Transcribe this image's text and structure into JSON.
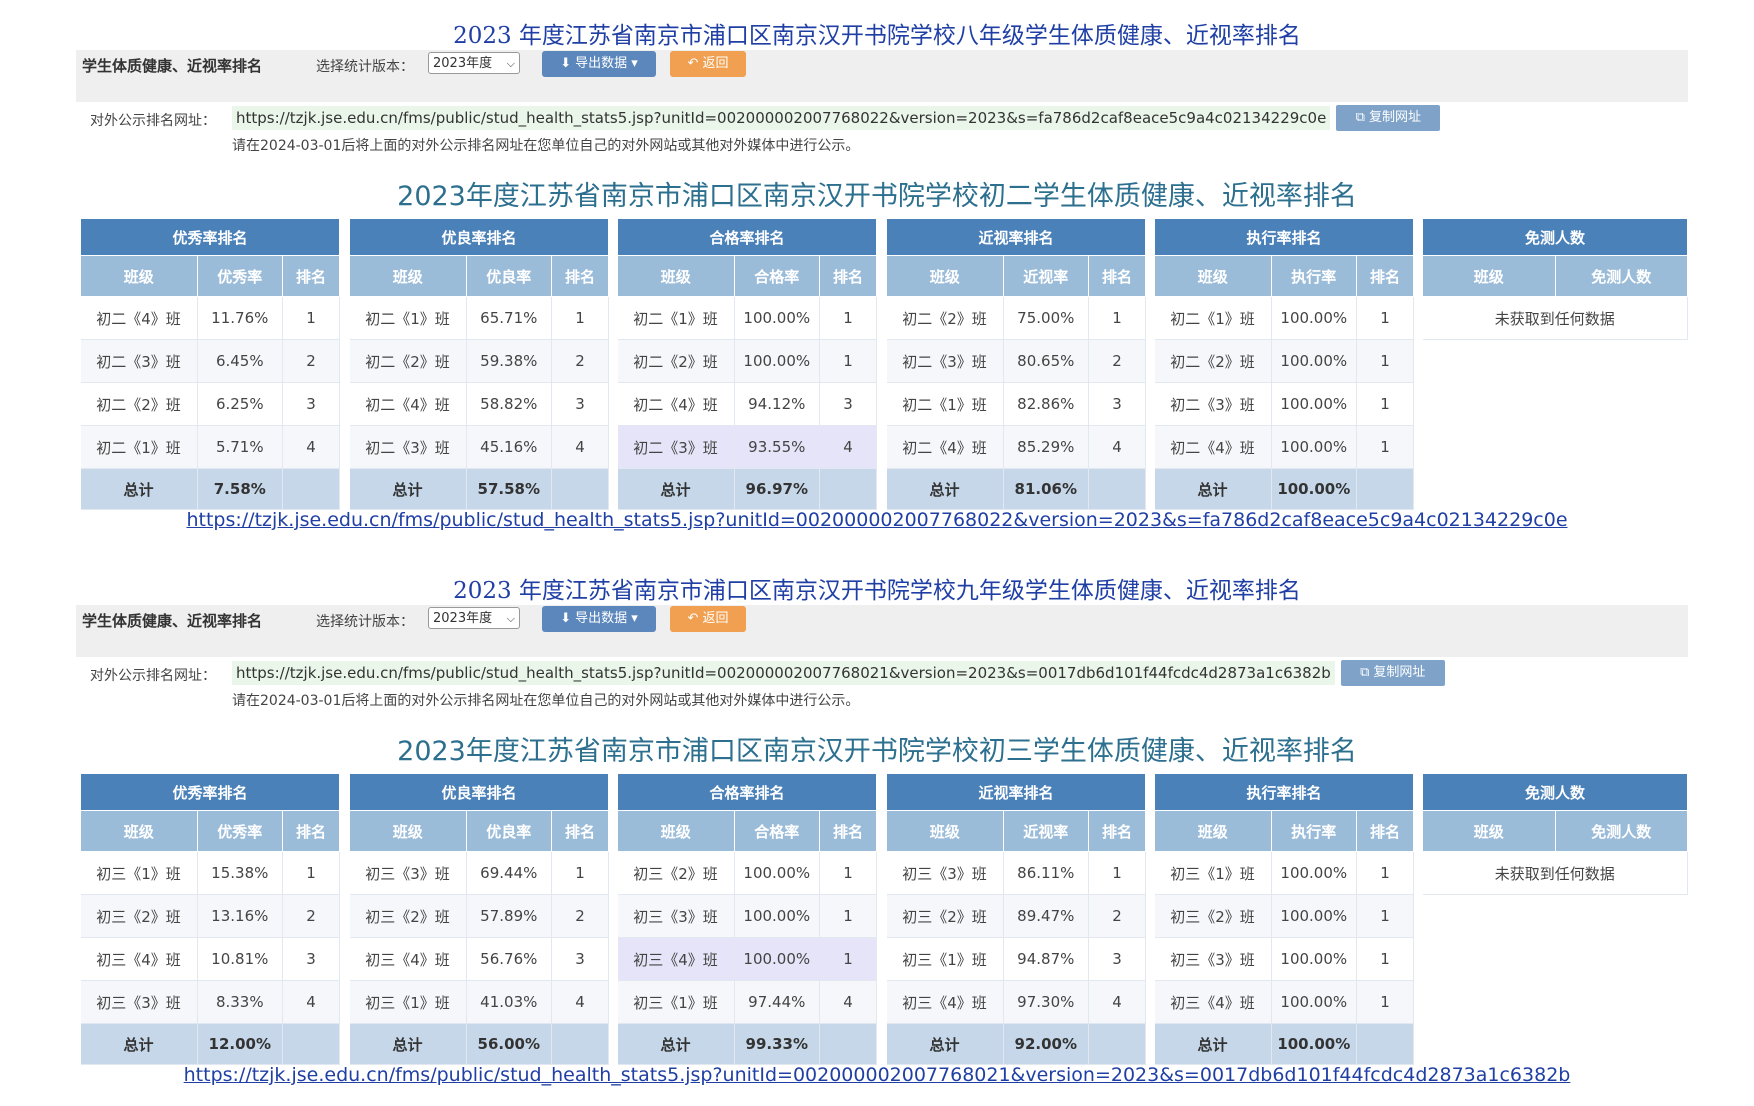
{
  "sections": [
    {
      "doc_title": "2023 年度江苏省南京市浦口区南京汉开书院学校八年级学生体质健康、近视率排名",
      "toolbar": {
        "label": "学生体质健康、近视率排名",
        "version_label": "选择统计版本：",
        "version_value": "2023年度",
        "export_label": "导出数据",
        "back_label": "返回"
      },
      "url_label": "对外公示排名网址：",
      "url": "https://tzjk.jse.edu.cn/fms/public/stud_health_stats5.jsp?unitId=00200000200776802 2&version=2023&s=fa786d2caf8eace5c9a4c02134229c0e",
      "copy_label": "复制网址",
      "notice": "请在2024-03-01后将上面的对外公示排名网址在您单位自己的对外网站或其他对外媒体中进行公示。",
      "sub_title": "2023年度江苏省南京市浦口区南京汉开书院学校初二学生体质健康、近视率排名",
      "footer_link": "https://tzjk.jse.edu.cn/fms/public/stud_health_stats5.jsp?unitId=002000002007768022&version=2023&s=fa786d2caf8eace5c9a4c02134229c0e",
      "panels": [
        {
          "title": "优秀率排名",
          "cols": [
            "班级",
            "优秀率",
            "排名"
          ],
          "rows": [
            [
              "初二《4》班",
              "11.76%",
              "1"
            ],
            [
              "初二《3》班",
              "6.45%",
              "2"
            ],
            [
              "初二《2》班",
              "6.25%",
              "3"
            ],
            [
              "初二《1》班",
              "5.71%",
              "4"
            ]
          ],
          "total": [
            "总计",
            "7.58%",
            ""
          ],
          "hl": -1
        },
        {
          "title": "优良率排名",
          "cols": [
            "班级",
            "优良率",
            "排名"
          ],
          "rows": [
            [
              "初二《1》班",
              "65.71%",
              "1"
            ],
            [
              "初二《2》班",
              "59.38%",
              "2"
            ],
            [
              "初二《4》班",
              "58.82%",
              "3"
            ],
            [
              "初二《3》班",
              "45.16%",
              "4"
            ]
          ],
          "total": [
            "总计",
            "57.58%",
            ""
          ],
          "hl": -1
        },
        {
          "title": "合格率排名",
          "cols": [
            "班级",
            "合格率",
            "排名"
          ],
          "rows": [
            [
              "初二《1》班",
              "100.00%",
              "1"
            ],
            [
              "初二《2》班",
              "100.00%",
              "1"
            ],
            [
              "初二《4》班",
              "94.12%",
              "3"
            ],
            [
              "初二《3》班",
              "93.55%",
              "4"
            ]
          ],
          "total": [
            "总计",
            "96.97%",
            ""
          ],
          "hl": 3
        },
        {
          "title": "近视率排名",
          "cols": [
            "班级",
            "近视率",
            "排名"
          ],
          "rows": [
            [
              "初二《2》班",
              "75.00%",
              "1"
            ],
            [
              "初二《3》班",
              "80.65%",
              "2"
            ],
            [
              "初二《1》班",
              "82.86%",
              "3"
            ],
            [
              "初二《4》班",
              "85.29%",
              "4"
            ]
          ],
          "total": [
            "总计",
            "81.06%",
            ""
          ],
          "hl": -1
        },
        {
          "title": "执行率排名",
          "cols": [
            "班级",
            "执行率",
            "排名"
          ],
          "rows": [
            [
              "初二《1》班",
              "100.00%",
              "1"
            ],
            [
              "初二《2》班",
              "100.00%",
              "1"
            ],
            [
              "初二《3》班",
              "100.00%",
              "1"
            ],
            [
              "初二《4》班",
              "100.00%",
              "1"
            ]
          ],
          "total": [
            "总计",
            "100.00%",
            ""
          ],
          "hl": -1
        }
      ],
      "exempt": {
        "title": "免测人数",
        "cols": [
          "班级",
          "免测人数"
        ],
        "empty": "未获取到任何数据"
      }
    },
    {
      "doc_title": "2023 年度江苏省南京市浦口区南京汉开书院学校九年级学生体质健康、近视率排名",
      "toolbar": {
        "label": "学生体质健康、近视率排名",
        "version_label": "选择统计版本：",
        "version_value": "2023年度",
        "export_label": "导出数据",
        "back_label": "返回"
      },
      "url_label": "对外公示排名网址：",
      "url": "https://tzjk.jse.edu.cn/fms/public/stud_health_stats5.jsp?unitId=002000002007768021&version=2023&s=0017db6d101f44fcdc4d2873a1c6382b",
      "copy_label": "复制网址",
      "notice": "请在2024-03-01后将上面的对外公示排名网址在您单位自己的对外网站或其他对外媒体中进行公示。",
      "sub_title": "2023年度江苏省南京市浦口区南京汉开书院学校初三学生体质健康、近视率排名",
      "footer_link": "https://tzjk.jse.edu.cn/fms/public/stud_health_stats5.jsp?unitId=002000002007768021&version=2023&s=0017db6d101f44fcdc4d2873a1c6382b",
      "panels": [
        {
          "title": "优秀率排名",
          "cols": [
            "班级",
            "优秀率",
            "排名"
          ],
          "rows": [
            [
              "初三《1》班",
              "15.38%",
              "1"
            ],
            [
              "初三《2》班",
              "13.16%",
              "2"
            ],
            [
              "初三《4》班",
              "10.81%",
              "3"
            ],
            [
              "初三《3》班",
              "8.33%",
              "4"
            ]
          ],
          "total": [
            "总计",
            "12.00%",
            ""
          ],
          "hl": -1
        },
        {
          "title": "优良率排名",
          "cols": [
            "班级",
            "优良率",
            "排名"
          ],
          "rows": [
            [
              "初三《3》班",
              "69.44%",
              "1"
            ],
            [
              "初三《2》班",
              "57.89%",
              "2"
            ],
            [
              "初三《4》班",
              "56.76%",
              "3"
            ],
            [
              "初三《1》班",
              "41.03%",
              "4"
            ]
          ],
          "total": [
            "总计",
            "56.00%",
            ""
          ],
          "hl": -1
        },
        {
          "title": "合格率排名",
          "cols": [
            "班级",
            "合格率",
            "排名"
          ],
          "rows": [
            [
              "初三《2》班",
              "100.00%",
              "1"
            ],
            [
              "初三《3》班",
              "100.00%",
              "1"
            ],
            [
              "初三《4》班",
              "100.00%",
              "1"
            ],
            [
              "初三《1》班",
              "97.44%",
              "4"
            ]
          ],
          "total": [
            "总计",
            "99.33%",
            ""
          ],
          "hl": 2
        },
        {
          "title": "近视率排名",
          "cols": [
            "班级",
            "近视率",
            "排名"
          ],
          "rows": [
            [
              "初三《3》班",
              "86.11%",
              "1"
            ],
            [
              "初三《2》班",
              "89.47%",
              "2"
            ],
            [
              "初三《1》班",
              "94.87%",
              "3"
            ],
            [
              "初三《4》班",
              "97.30%",
              "4"
            ]
          ],
          "total": [
            "总计",
            "92.00%",
            ""
          ],
          "hl": -1
        },
        {
          "title": "执行率排名",
          "cols": [
            "班级",
            "执行率",
            "排名"
          ],
          "rows": [
            [
              "初三《1》班",
              "100.00%",
              "1"
            ],
            [
              "初三《2》班",
              "100.00%",
              "1"
            ],
            [
              "初三《3》班",
              "100.00%",
              "1"
            ],
            [
              "初三《4》班",
              "100.00%",
              "1"
            ]
          ],
          "total": [
            "总计",
            "100.00%",
            ""
          ],
          "hl": -1
        }
      ],
      "exempt": {
        "title": "免测人数",
        "cols": [
          "班级",
          "免测人数"
        ],
        "empty": "未获取到任何数据"
      }
    }
  ]
}
